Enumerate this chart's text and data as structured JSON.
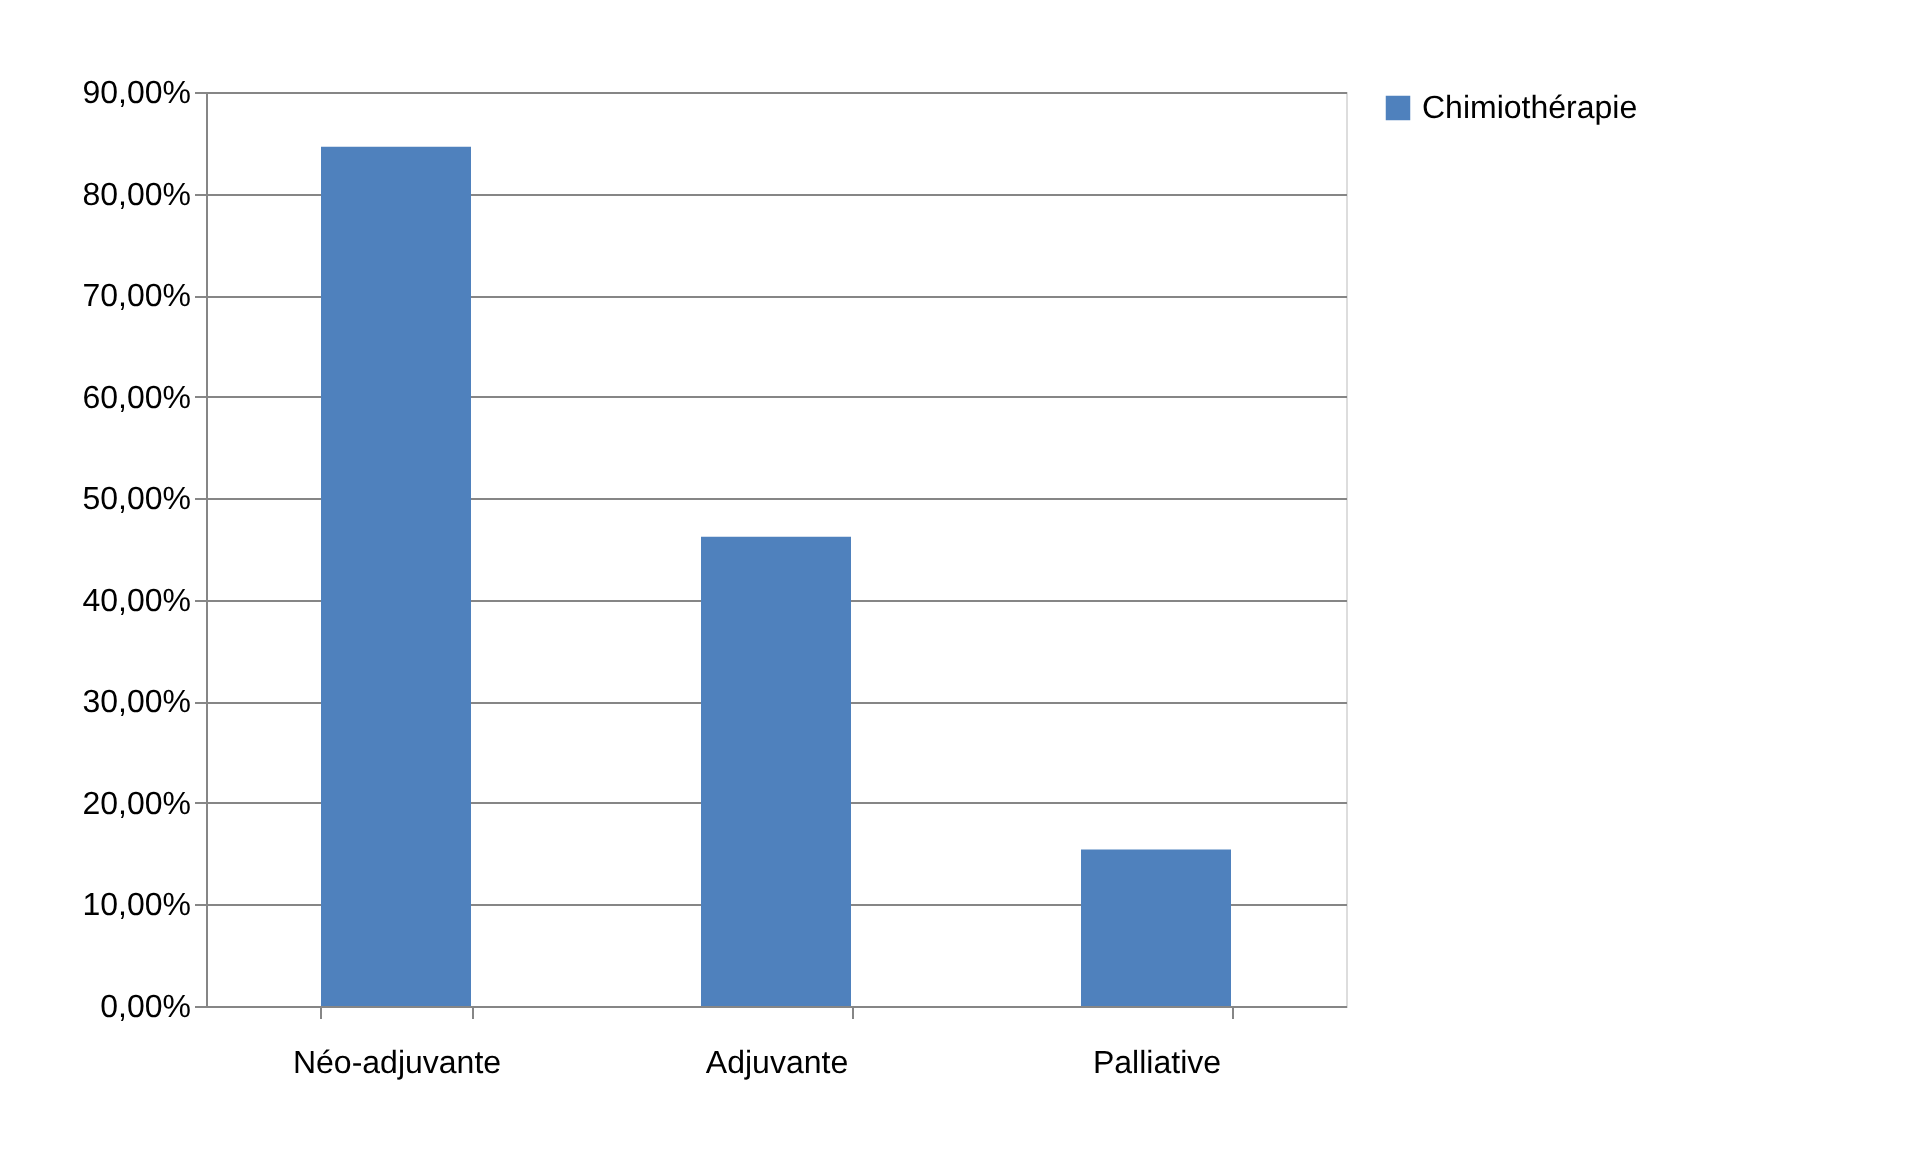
{
  "chart_data": {
    "type": "bar",
    "categories": [
      "Néo-adjuvante",
      "Adjuvante",
      "Palliative"
    ],
    "series": [
      {
        "name": "Chimiothérapie",
        "color": "#4f81bd",
        "values": [
          84.6,
          46.2,
          15.4
        ]
      }
    ],
    "ylim": [
      0,
      90
    ],
    "yticks": [
      {
        "value": 0,
        "label": "0,00%"
      },
      {
        "value": 10,
        "label": "10,00%"
      },
      {
        "value": 20,
        "label": "20,00%"
      },
      {
        "value": 30,
        "label": "30,00%"
      },
      {
        "value": 40,
        "label": "40,00%"
      },
      {
        "value": 50,
        "label": "50,00%"
      },
      {
        "value": 60,
        "label": "60,00%"
      },
      {
        "value": 70,
        "label": "70,00%"
      },
      {
        "value": 80,
        "label": "80,00%"
      },
      {
        "value": 90,
        "label": "90,00%"
      }
    ],
    "grid": "y",
    "legend": "right"
  }
}
